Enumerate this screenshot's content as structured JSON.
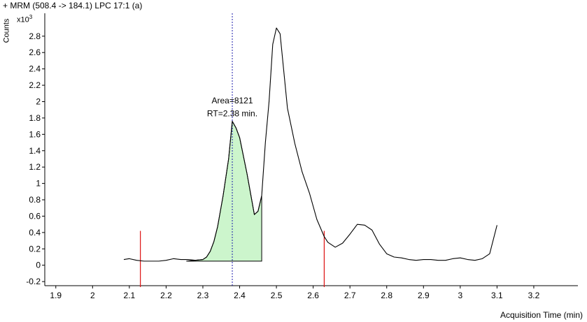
{
  "chart_data": {
    "type": "line",
    "title": "+ MRM (508.4 -> 184.1) LPC 17:1 (a)",
    "xlabel": "Acquisition Time (min)",
    "ylabel": "Counts",
    "y_multiplier": "x10",
    "y_multiplier_exp": "3",
    "xlim": [
      1.87,
      3.32
    ],
    "ylim": [
      -0.25,
      3.08
    ],
    "x_ticks": [
      "1.9",
      "2",
      "2.1",
      "2.2",
      "2.3",
      "2.4",
      "2.5",
      "2.6",
      "2.7",
      "2.8",
      "2.9",
      "3",
      "3.1",
      "3.2"
    ],
    "y_ticks": [
      "-0.2",
      "0",
      "0.2",
      "0.4",
      "0.6",
      "0.8",
      "1",
      "1.2",
      "1.4",
      "1.6",
      "1.8",
      "2",
      "2.2",
      "2.4",
      "2.6",
      "2.8"
    ],
    "series": [
      {
        "x": [
          2.085,
          2.1,
          2.12,
          2.14,
          2.16,
          2.18,
          2.2,
          2.22,
          2.24,
          2.26,
          2.28,
          2.3,
          2.31,
          2.32,
          2.33,
          2.34,
          2.355,
          2.37,
          2.38,
          2.39,
          2.4,
          2.42,
          2.44,
          2.45,
          2.46,
          2.47,
          2.48,
          2.49,
          2.5,
          2.51,
          2.53,
          2.55,
          2.57,
          2.59,
          2.61,
          2.63,
          2.64,
          2.66,
          2.68,
          2.7,
          2.72,
          2.74,
          2.76,
          2.78,
          2.8,
          2.82,
          2.84,
          2.86,
          2.88,
          2.9,
          2.92,
          2.94,
          2.96,
          2.98,
          3.0,
          3.02,
          3.04,
          3.06,
          3.08,
          3.1
        ],
        "y": [
          0.07,
          0.08,
          0.06,
          0.05,
          0.05,
          0.05,
          0.06,
          0.08,
          0.07,
          0.07,
          0.06,
          0.07,
          0.1,
          0.17,
          0.29,
          0.47,
          0.85,
          1.3,
          1.76,
          1.68,
          1.56,
          1.12,
          0.62,
          0.66,
          0.85,
          1.5,
          2.0,
          2.7,
          2.9,
          2.83,
          1.92,
          1.49,
          1.14,
          0.88,
          0.56,
          0.35,
          0.28,
          0.22,
          0.27,
          0.38,
          0.5,
          0.49,
          0.43,
          0.26,
          0.14,
          0.1,
          0.09,
          0.07,
          0.06,
          0.07,
          0.07,
          0.06,
          0.06,
          0.08,
          0.09,
          0.07,
          0.06,
          0.08,
          0.14,
          0.49
        ]
      }
    ],
    "integrated_peak": {
      "start": 2.255,
      "end": 2.46,
      "baseline": 0.05,
      "area_label": "Area=8121",
      "rt_label": "RT=2.38 min.",
      "rt": 2.38
    },
    "integration_markers": [
      2.13,
      2.63
    ],
    "grid": false,
    "colors": {
      "trace": "#000000",
      "fill": "#ccf5cc",
      "rt_line": "#1a1aaa",
      "markers": "#dd1111"
    }
  }
}
